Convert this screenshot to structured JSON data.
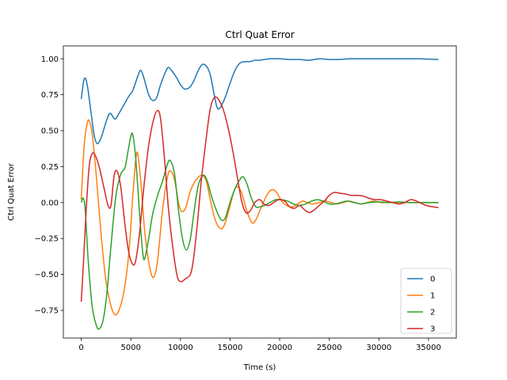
{
  "chart_data": {
    "type": "line",
    "title": "Ctrl Quat Error",
    "xlabel": "Time (s)",
    "ylabel": "Ctrl Quat Error",
    "xlim": [
      -1800,
      37800
    ],
    "ylim": [
      -0.9425,
      1.0895
    ],
    "x_ticks": [
      0,
      5000,
      10000,
      15000,
      20000,
      25000,
      30000,
      35000
    ],
    "x_tick_labels": [
      "0",
      "5000",
      "10000",
      "15000",
      "20000",
      "25000",
      "30000",
      "35000"
    ],
    "y_ticks": [
      -0.75,
      -0.5,
      -0.25,
      0.0,
      0.25,
      0.5,
      0.75,
      1.0
    ],
    "y_tick_labels": [
      "−0.75",
      "−0.50",
      "−0.25",
      "0.00",
      "0.25",
      "0.50",
      "0.75",
      "1.00"
    ],
    "grid": false,
    "legend_position": "lower-right",
    "series": [
      {
        "name": "0",
        "color": "#1f77b4",
        "points": [
          [
            0,
            0.72
          ],
          [
            300,
            0.86
          ],
          [
            600,
            0.82
          ],
          [
            1000,
            0.62
          ],
          [
            1300,
            0.47
          ],
          [
            1600,
            0.41
          ],
          [
            2000,
            0.45
          ],
          [
            2500,
            0.56
          ],
          [
            2900,
            0.62
          ],
          [
            3400,
            0.58
          ],
          [
            3800,
            0.62
          ],
          [
            4300,
            0.68
          ],
          [
            4800,
            0.74
          ],
          [
            5200,
            0.78
          ],
          [
            5700,
            0.88
          ],
          [
            6000,
            0.92
          ],
          [
            6300,
            0.87
          ],
          [
            6800,
            0.75
          ],
          [
            7200,
            0.71
          ],
          [
            7600,
            0.73
          ],
          [
            8000,
            0.82
          ],
          [
            8500,
            0.91
          ],
          [
            8800,
            0.94
          ],
          [
            9200,
            0.91
          ],
          [
            9600,
            0.87
          ],
          [
            10000,
            0.82
          ],
          [
            10400,
            0.79
          ],
          [
            10900,
            0.8
          ],
          [
            11300,
            0.84
          ],
          [
            11800,
            0.92
          ],
          [
            12200,
            0.96
          ],
          [
            12600,
            0.95
          ],
          [
            13000,
            0.89
          ],
          [
            13400,
            0.75
          ],
          [
            13700,
            0.66
          ],
          [
            14000,
            0.66
          ],
          [
            14500,
            0.73
          ],
          [
            15000,
            0.83
          ],
          [
            15500,
            0.92
          ],
          [
            16000,
            0.97
          ],
          [
            16500,
            0.98
          ],
          [
            17000,
            0.98
          ],
          [
            17500,
            0.99
          ],
          [
            18000,
            0.99
          ],
          [
            19000,
            1.0
          ],
          [
            20000,
            1.0
          ],
          [
            21000,
            0.995
          ],
          [
            22000,
            0.995
          ],
          [
            23000,
            0.99
          ],
          [
            24000,
            1.0
          ],
          [
            25000,
            0.995
          ],
          [
            26000,
            0.995
          ],
          [
            27000,
            1.0
          ],
          [
            28000,
            1.0
          ],
          [
            29000,
            1.0
          ],
          [
            30000,
            1.0
          ],
          [
            32000,
            1.0
          ],
          [
            34000,
            1.0
          ],
          [
            36000,
            0.995
          ]
        ]
      },
      {
        "name": "1",
        "color": "#ff7f0e",
        "points": [
          [
            0,
            0.02
          ],
          [
            300,
            0.4
          ],
          [
            600,
            0.55
          ],
          [
            800,
            0.57
          ],
          [
            1100,
            0.48
          ],
          [
            1500,
            0.2
          ],
          [
            2000,
            -0.22
          ],
          [
            2500,
            -0.55
          ],
          [
            3000,
            -0.72
          ],
          [
            3400,
            -0.78
          ],
          [
            3800,
            -0.75
          ],
          [
            4300,
            -0.62
          ],
          [
            4800,
            -0.35
          ],
          [
            5200,
            0.05
          ],
          [
            5500,
            0.3
          ],
          [
            5700,
            0.34
          ],
          [
            6000,
            0.15
          ],
          [
            6400,
            -0.2
          ],
          [
            6900,
            -0.45
          ],
          [
            7300,
            -0.52
          ],
          [
            7700,
            -0.4
          ],
          [
            8200,
            -0.05
          ],
          [
            8700,
            0.18
          ],
          [
            9000,
            0.22
          ],
          [
            9400,
            0.16
          ],
          [
            9800,
            0.0
          ],
          [
            10100,
            -0.06
          ],
          [
            10500,
            -0.04
          ],
          [
            11000,
            0.08
          ],
          [
            11500,
            0.15
          ],
          [
            12100,
            0.19
          ],
          [
            12600,
            0.15
          ],
          [
            13000,
            0.02
          ],
          [
            13500,
            -0.12
          ],
          [
            14000,
            -0.18
          ],
          [
            14400,
            -0.16
          ],
          [
            14900,
            -0.05
          ],
          [
            15400,
            0.08
          ],
          [
            15800,
            0.11
          ],
          [
            16200,
            0.06
          ],
          [
            16700,
            -0.06
          ],
          [
            17200,
            -0.14
          ],
          [
            17600,
            -0.12
          ],
          [
            18100,
            -0.04
          ],
          [
            18700,
            0.05
          ],
          [
            19200,
            0.09
          ],
          [
            19700,
            0.07
          ],
          [
            20200,
            0.01
          ],
          [
            20700,
            -0.02
          ],
          [
            21300,
            -0.03
          ],
          [
            21800,
            -0.01
          ],
          [
            22300,
            0.01
          ],
          [
            22800,
            0.0
          ],
          [
            23300,
            -0.01
          ],
          [
            24000,
            0.0
          ],
          [
            24600,
            0.01
          ],
          [
            25200,
            0.0
          ],
          [
            25800,
            -0.01
          ],
          [
            26400,
            0.0
          ],
          [
            27000,
            0.01
          ],
          [
            27600,
            0.0
          ],
          [
            28200,
            -0.01
          ],
          [
            28800,
            0.0
          ],
          [
            29500,
            0.01
          ],
          [
            30200,
            0.0
          ],
          [
            31000,
            0.0
          ],
          [
            32000,
            0.0
          ],
          [
            33000,
            0.0
          ],
          [
            34000,
            0.0
          ],
          [
            35000,
            0.0
          ],
          [
            36000,
            0.0
          ]
        ]
      },
      {
        "name": "2",
        "color": "#2ca02c",
        "points": [
          [
            0,
            0.0
          ],
          [
            200,
            0.03
          ],
          [
            400,
            -0.05
          ],
          [
            700,
            -0.4
          ],
          [
            1100,
            -0.72
          ],
          [
            1500,
            -0.85
          ],
          [
            1800,
            -0.88
          ],
          [
            2200,
            -0.82
          ],
          [
            2600,
            -0.62
          ],
          [
            3000,
            -0.3
          ],
          [
            3500,
            0.05
          ],
          [
            4000,
            0.2
          ],
          [
            4400,
            0.24
          ],
          [
            4700,
            0.35
          ],
          [
            5000,
            0.46
          ],
          [
            5200,
            0.47
          ],
          [
            5500,
            0.3
          ],
          [
            5900,
            -0.1
          ],
          [
            6200,
            -0.35
          ],
          [
            6400,
            -0.39
          ],
          [
            6800,
            -0.25
          ],
          [
            7200,
            -0.08
          ],
          [
            7700,
            0.05
          ],
          [
            8200,
            0.15
          ],
          [
            8700,
            0.27
          ],
          [
            9000,
            0.29
          ],
          [
            9400,
            0.2
          ],
          [
            9800,
            -0.05
          ],
          [
            10200,
            -0.25
          ],
          [
            10600,
            -0.33
          ],
          [
            11000,
            -0.25
          ],
          [
            11400,
            -0.05
          ],
          [
            11800,
            0.12
          ],
          [
            12300,
            0.19
          ],
          [
            12700,
            0.15
          ],
          [
            13100,
            0.05
          ],
          [
            13600,
            -0.05
          ],
          [
            14100,
            -0.12
          ],
          [
            14500,
            -0.11
          ],
          [
            14900,
            -0.02
          ],
          [
            15400,
            0.08
          ],
          [
            15900,
            0.15
          ],
          [
            16300,
            0.18
          ],
          [
            16700,
            0.13
          ],
          [
            17100,
            0.04
          ],
          [
            17600,
            -0.03
          ],
          [
            18000,
            -0.03
          ],
          [
            18500,
            -0.02
          ],
          [
            19000,
            0.0
          ],
          [
            19600,
            0.02
          ],
          [
            20200,
            0.02
          ],
          [
            20800,
            0.01
          ],
          [
            21400,
            -0.01
          ],
          [
            22000,
            -0.02
          ],
          [
            22600,
            -0.01
          ],
          [
            23200,
            0.01
          ],
          [
            23800,
            0.02
          ],
          [
            24400,
            0.01
          ],
          [
            25000,
            -0.01
          ],
          [
            25600,
            -0.01
          ],
          [
            26200,
            0.0
          ],
          [
            26800,
            0.01
          ],
          [
            27500,
            0.0
          ],
          [
            28200,
            -0.01
          ],
          [
            29000,
            0.0
          ],
          [
            30000,
            0.005
          ],
          [
            31000,
            0.0
          ],
          [
            32000,
            0.005
          ],
          [
            33000,
            0.0
          ],
          [
            34000,
            0.0
          ],
          [
            35000,
            0.0
          ],
          [
            36000,
            0.0
          ]
        ]
      },
      {
        "name": "3",
        "color": "#d62728",
        "points": [
          [
            0,
            -0.69
          ],
          [
            200,
            -0.45
          ],
          [
            500,
            -0.05
          ],
          [
            800,
            0.25
          ],
          [
            1100,
            0.34
          ],
          [
            1400,
            0.33
          ],
          [
            1800,
            0.25
          ],
          [
            2300,
            0.1
          ],
          [
            2700,
            -0.02
          ],
          [
            3000,
            -0.02
          ],
          [
            3300,
            0.18
          ],
          [
            3600,
            0.22
          ],
          [
            4000,
            0.1
          ],
          [
            4400,
            -0.15
          ],
          [
            4800,
            -0.35
          ],
          [
            5200,
            -0.43
          ],
          [
            5500,
            -0.4
          ],
          [
            5900,
            -0.2
          ],
          [
            6300,
            0.1
          ],
          [
            6800,
            0.4
          ],
          [
            7300,
            0.58
          ],
          [
            7700,
            0.64
          ],
          [
            8000,
            0.58
          ],
          [
            8400,
            0.3
          ],
          [
            8800,
            -0.05
          ],
          [
            9300,
            -0.35
          ],
          [
            9700,
            -0.52
          ],
          [
            10100,
            -0.55
          ],
          [
            10500,
            -0.53
          ],
          [
            11000,
            -0.5
          ],
          [
            11300,
            -0.4
          ],
          [
            11700,
            -0.15
          ],
          [
            12100,
            0.15
          ],
          [
            12600,
            0.45
          ],
          [
            13000,
            0.65
          ],
          [
            13400,
            0.73
          ],
          [
            13800,
            0.72
          ],
          [
            14300,
            0.65
          ],
          [
            14800,
            0.52
          ],
          [
            15300,
            0.35
          ],
          [
            15800,
            0.15
          ],
          [
            16200,
            0.0
          ],
          [
            16600,
            -0.07
          ],
          [
            17000,
            -0.06
          ],
          [
            17500,
            0.0
          ],
          [
            18000,
            0.02
          ],
          [
            18400,
            -0.01
          ],
          [
            18900,
            -0.02
          ],
          [
            19400,
            0.0
          ],
          [
            19900,
            0.02
          ],
          [
            20500,
            0.01
          ],
          [
            21000,
            -0.03
          ],
          [
            21500,
            -0.04
          ],
          [
            22000,
            -0.02
          ],
          [
            22500,
            -0.05
          ],
          [
            23000,
            -0.07
          ],
          [
            23500,
            -0.05
          ],
          [
            24000,
            -0.02
          ],
          [
            24500,
            0.01
          ],
          [
            25000,
            0.05
          ],
          [
            25500,
            0.07
          ],
          [
            26000,
            0.065
          ],
          [
            26600,
            0.06
          ],
          [
            27200,
            0.05
          ],
          [
            27800,
            0.05
          ],
          [
            28400,
            0.045
          ],
          [
            29000,
            0.03
          ],
          [
            29600,
            0.02
          ],
          [
            30200,
            0.02
          ],
          [
            30800,
            0.01
          ],
          [
            31400,
            0.0
          ],
          [
            32000,
            -0.01
          ],
          [
            32600,
            0.0
          ],
          [
            33200,
            0.02
          ],
          [
            33800,
            0.01
          ],
          [
            34400,
            -0.01
          ],
          [
            35000,
            -0.025
          ],
          [
            35500,
            -0.03
          ],
          [
            36000,
            -0.035
          ]
        ]
      }
    ]
  }
}
